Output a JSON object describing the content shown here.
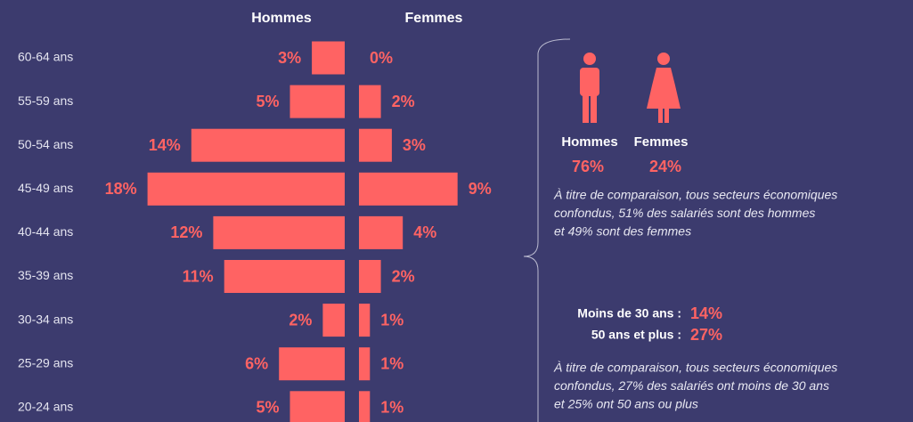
{
  "chart_data": {
    "type": "pyramid",
    "categories": [
      "60-64 ans",
      "55-59 ans",
      "50-54 ans",
      "45-49 ans",
      "40-44 ans",
      "35-39 ans",
      "30-34 ans",
      "25-29 ans",
      "20-24 ans"
    ],
    "series": [
      {
        "name": "Hommes",
        "color": "#ff6363",
        "values": [
          3,
          5,
          14,
          18,
          12,
          11,
          2,
          6,
          5
        ],
        "value_labels": [
          "3%",
          "5%",
          "14%",
          "18%",
          "12%",
          "11%",
          "2%",
          "6%",
          "5%"
        ]
      },
      {
        "name": "Femmes",
        "color": "#ff6363",
        "values": [
          0,
          2,
          3,
          9,
          4,
          2,
          1,
          1,
          1
        ],
        "value_labels": [
          "0%",
          "2%",
          "3%",
          "9%",
          "4%",
          "2%",
          "1%",
          "1%",
          "1%"
        ]
      }
    ]
  },
  "gender_summary": {
    "men_label": "Hommes",
    "women_label": "Femmes",
    "men_share": "76%",
    "women_share": "24%",
    "comparison": [
      "À titre de comparaison, tous secteurs économiques",
      "confondus, 51% des salariés sont des hommes",
      "et 49% sont des femmes"
    ]
  },
  "age_summary": {
    "under_30_label": "Moins de 30 ans :",
    "under_30": "14%",
    "over_50_label": "50 ans et plus :",
    "over_50": "27%",
    "comparison": [
      "À titre de comparaison, tous secteurs économiques",
      "confondus, 27% des salariés ont moins de 30 ans",
      "et 25% ont 50 ans ou plus"
    ]
  }
}
